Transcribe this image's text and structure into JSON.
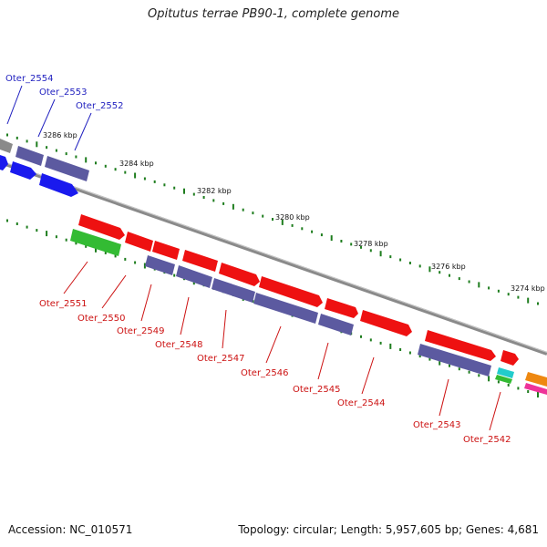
{
  "title": "Opitutus terrae PB90-1, complete genome",
  "accession": "Accession: NC_010571",
  "summary": "Topology: circular; Length: 5,957,605 bp; Genes: 4,681",
  "colors": {
    "backbone": "#7f7f7f",
    "scale_tick": "#1e7d1e",
    "label_top": "#1f1fbf",
    "label_bottom": "#cc1111",
    "gene_red": "#ee1111",
    "gene_purple": "#5c5aa0",
    "gene_blue": "#1a1aee",
    "gene_green": "#33bb33",
    "gene_gray": "#8a8a8a",
    "gene_cyan": "#22cccc",
    "gene_orange": "#ee8811",
    "gene_pink": "#ee3399"
  },
  "scale_labels": [
    "3286 kbp",
    "3284 kbp",
    "3282 kbp",
    "3280 kbp",
    "3278 kbp",
    "3276 kbp",
    "3274 kbp"
  ],
  "labels_top": [
    "Oter_2554",
    "Oter_2553",
    "Oter_2552"
  ],
  "labels_bottom": [
    "Oter_2551",
    "Oter_2550",
    "Oter_2549",
    "Oter_2548",
    "Oter_2547",
    "Oter_2546",
    "Oter_2545",
    "Oter_2544",
    "Oter_2543",
    "Oter_2542"
  ]
}
